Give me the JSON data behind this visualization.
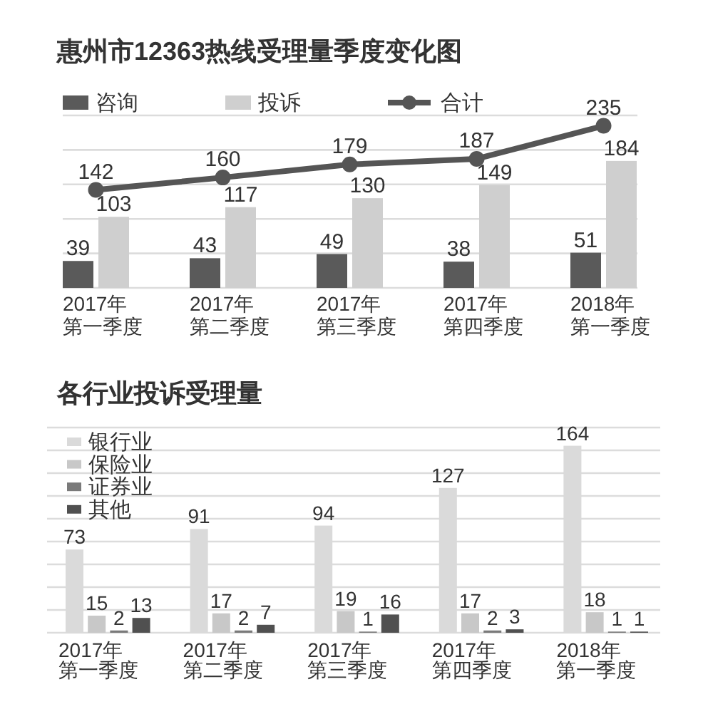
{
  "chart_data": [
    {
      "type": "bar",
      "title": "惠州市12363热线受理量季度变化图",
      "categories": [
        "2017年第一季度",
        "2017年第二季度",
        "2017年第三季度",
        "2017年第四季度",
        "2018年第一季度"
      ],
      "series": [
        {
          "name": "咨询",
          "color": "#5a5a5a",
          "values": [
            39,
            43,
            49,
            38,
            51
          ]
        },
        {
          "name": "投诉",
          "color": "#cfcfcf",
          "values": [
            103,
            117,
            130,
            149,
            184
          ]
        },
        {
          "name": "合计",
          "type": "line",
          "color": "#555555",
          "values": [
            142,
            160,
            179,
            187,
            235
          ]
        }
      ],
      "marker": "circle",
      "ylim": [
        0,
        250
      ],
      "yticks": [
        {
          "value": 0,
          "label": null
        },
        {
          "value": 50,
          "label": null
        },
        {
          "value": 100,
          "label": null
        },
        {
          "value": 150,
          "label": null
        },
        {
          "value": 200,
          "label": null
        },
        {
          "value": 250,
          "label": null
        }
      ],
      "grid": "y",
      "tick_labels": "x",
      "legend": "top",
      "data_labels": true
    },
    {
      "type": "bar",
      "title": "各行业投诉受理量",
      "categories": [
        "2017年第一季度",
        "2017年第二季度",
        "2017年第三季度",
        "2017年第四季度",
        "2018年第一季度"
      ],
      "series": [
        {
          "name": "银行业",
          "color": "#dadada",
          "values": [
            73,
            91,
            94,
            127,
            164
          ]
        },
        {
          "name": "保险业",
          "color": "#c8c8c8",
          "values": [
            15,
            17,
            19,
            17,
            18
          ]
        },
        {
          "name": "证券业",
          "color": "#7a7a7a",
          "values": [
            2,
            2,
            1,
            2,
            1
          ]
        },
        {
          "name": "其他",
          "color": "#505050",
          "values": [
            13,
            7,
            16,
            3,
            1
          ]
        }
      ],
      "ylim": [
        0,
        180
      ],
      "yticks": [
        {
          "value": 0,
          "label": null
        },
        {
          "value": 20,
          "label": null
        },
        {
          "value": 40,
          "label": null
        },
        {
          "value": 60,
          "label": null
        },
        {
          "value": 80,
          "label": null
        },
        {
          "value": 100,
          "label": null
        },
        {
          "value": 120,
          "label": null
        },
        {
          "value": 140,
          "label": null
        },
        {
          "value": 160,
          "label": null
        },
        {
          "value": 180,
          "label": null
        }
      ],
      "grid": "y",
      "tick_labels": "x",
      "legend": "top left",
      "data_labels": true
    }
  ]
}
